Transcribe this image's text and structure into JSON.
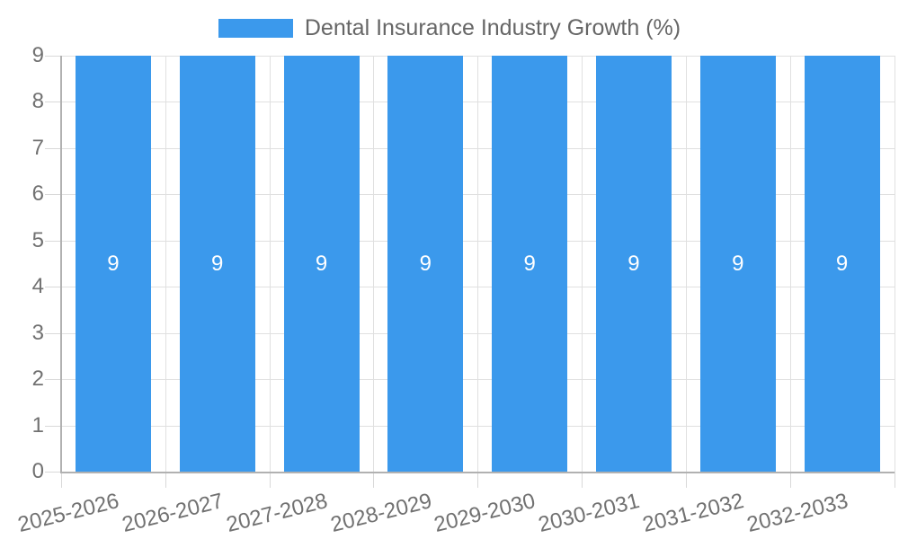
{
  "chart_data": {
    "type": "bar",
    "title": "Dental Insurance Industry Growth (%)",
    "legend": {
      "label": "Dental Insurance Industry Growth (%)",
      "position": "top"
    },
    "categories": [
      "2025-2026",
      "2026-2027",
      "2027-2028",
      "2028-2029",
      "2029-2030",
      "2030-2031",
      "2031-2032",
      "2032-2033"
    ],
    "series": [
      {
        "name": "Dental Insurance Industry Growth (%)",
        "values": [
          9,
          9,
          9,
          9,
          9,
          9,
          9,
          9
        ]
      }
    ],
    "value_labels": [
      "9",
      "9",
      "9",
      "9",
      "9",
      "9",
      "9",
      "9"
    ],
    "xlabel": "",
    "ylabel": "",
    "ylim": [
      0,
      9
    ],
    "yticks": [
      0,
      1,
      2,
      3,
      4,
      5,
      6,
      7,
      8,
      9
    ],
    "grid": true,
    "x_label_rotation_deg": -14,
    "colors": {
      "bar": "#3B99EC",
      "grid": "#E0E0E0",
      "axis": "#B1B1B1",
      "tick_mark": "#D9D9D9",
      "tick_label": "#717171",
      "value_label": "#FFFFFF",
      "legend_text": "#666666",
      "background": "#FFFFFF"
    }
  }
}
